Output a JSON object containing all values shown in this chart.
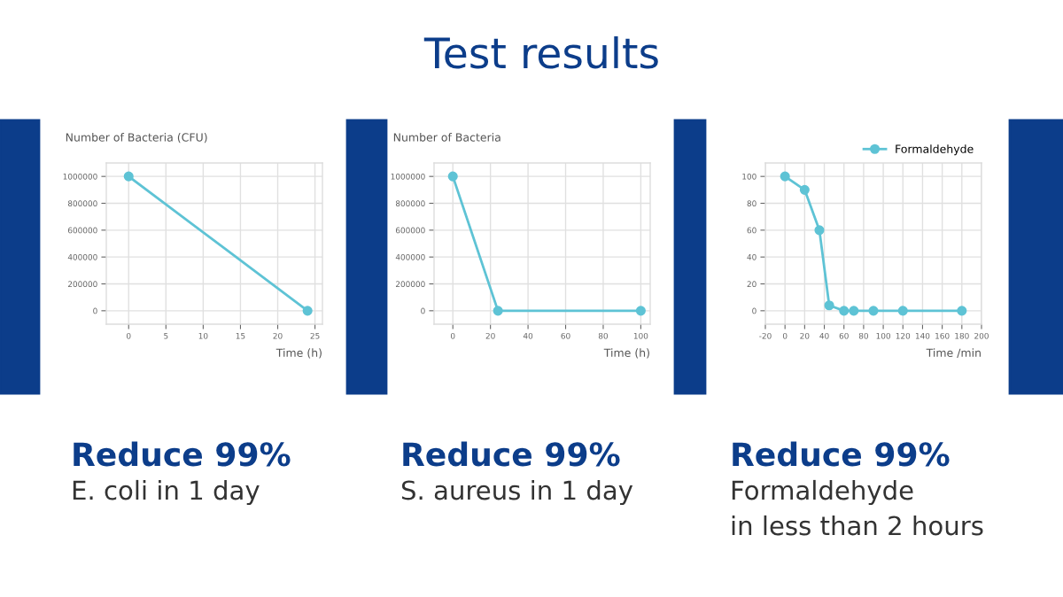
{
  "chart_data": [
    {
      "type": "line",
      "ylabel": "Number of Bacteria (CFU)",
      "xlabel": "Time (h)",
      "x": [
        0,
        24
      ],
      "series": [
        {
          "color": "#5ec3d5",
          "values": [
            1000000,
            0
          ]
        }
      ],
      "xlim": [
        -3,
        26
      ],
      "xticks": [
        0,
        5,
        10,
        15,
        20,
        25
      ],
      "ylim": [
        -100000,
        1100000
      ],
      "yticks": [
        0,
        200000,
        400000,
        600000,
        800000,
        1000000
      ],
      "grid": true,
      "marker": "circle",
      "line_style": "solid",
      "annotations": [
        "Reduce 99%",
        "E. coli in 1 day"
      ]
    },
    {
      "type": "line",
      "title": "Test results",
      "ylabel": "Number of Bacteria",
      "xlabel": "Time (h)",
      "x": [
        0,
        24,
        100
      ],
      "series": [
        {
          "color": "#5ec3d5",
          "values": [
            1000000,
            0,
            0
          ]
        }
      ],
      "xlim": [
        -10,
        105
      ],
      "xticks": [
        0,
        20,
        40,
        60,
        80,
        100
      ],
      "ylim": [
        -100000,
        1100000
      ],
      "yticks": [
        0,
        200000,
        400000,
        600000,
        800000,
        1000000
      ],
      "grid": true,
      "marker": "circle",
      "line_style": "solid",
      "annotations": [
        "Reduce 99%",
        "S. aureus in 1 day"
      ]
    },
    {
      "type": "line",
      "xlabel": "Time /min",
      "x": [
        0,
        20,
        35,
        45,
        60,
        70,
        90,
        120,
        180
      ],
      "series": [
        {
          "name": "Formaldehyde",
          "color": "#5ec3d5",
          "values": [
            100,
            90,
            60,
            4,
            0,
            0,
            0,
            0,
            0
          ]
        }
      ],
      "xlim": [
        -20,
        200
      ],
      "xticks": [
        -20,
        0,
        20,
        40,
        60,
        80,
        100,
        120,
        140,
        160,
        180,
        200
      ],
      "ylim": [
        -10,
        110
      ],
      "yticks": [
        0,
        20,
        40,
        60,
        80,
        100
      ],
      "grid": true,
      "legend": "top right",
      "marker": "circle",
      "line_style": "solid",
      "annotations": [
        "Reduce 99%",
        "Formaldehyde",
        "in less than 2 hours"
      ]
    }
  ]
}
